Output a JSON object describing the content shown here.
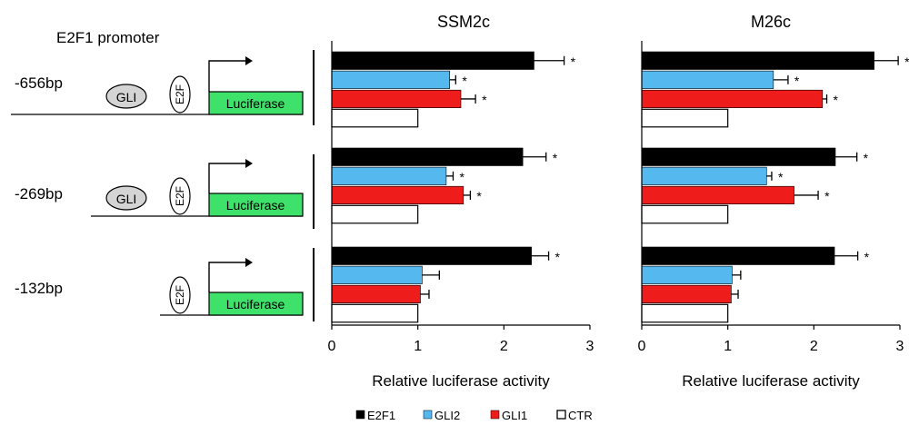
{
  "header": {
    "promoter_title": "E2F1 promoter"
  },
  "constructs": [
    {
      "label": "-656bp",
      "has_gli": true,
      "gli_text": "GLI",
      "e2f_text": "E2F",
      "reporter_text": "Luciferase"
    },
    {
      "label": "-269bp",
      "has_gli": true,
      "gli_text": "GLI",
      "e2f_text": "E2F",
      "reporter_text": "Luciferase"
    },
    {
      "label": "-132bp",
      "has_gli": false,
      "gli_text": "",
      "e2f_text": "E2F",
      "reporter_text": "Luciferase"
    }
  ],
  "colors": {
    "E2F1": "#000000",
    "GLI2": "#55b8ef",
    "GLI1": "#ef1c1c",
    "CTR": "#ffffff",
    "gli_oval": "#d4d4d4",
    "luciferase": "#3ee26a"
  },
  "chart_data": [
    {
      "type": "bar",
      "orientation": "horizontal",
      "title": "SSM2c",
      "xlabel": "Relative luciferase activity",
      "xlim": [
        0,
        3
      ],
      "xticks": [
        "0",
        "1",
        "2",
        "3"
      ],
      "categories": [
        "-656bp",
        "-269bp",
        "-132bp"
      ],
      "series": [
        {
          "name": "E2F1",
          "values": [
            2.35,
            2.22,
            2.32
          ],
          "errors": [
            0.35,
            0.27,
            0.2
          ],
          "significant": [
            true,
            true,
            true
          ]
        },
        {
          "name": "GLI2",
          "values": [
            1.37,
            1.33,
            1.05
          ],
          "errors": [
            0.07,
            0.08,
            0.2
          ],
          "significant": [
            true,
            true,
            false
          ]
        },
        {
          "name": "GLI1",
          "values": [
            1.5,
            1.53,
            1.03
          ],
          "errors": [
            0.17,
            0.08,
            0.1
          ],
          "significant": [
            true,
            true,
            false
          ]
        },
        {
          "name": "CTR",
          "values": [
            1.0,
            1.0,
            1.0
          ],
          "errors": [
            0,
            0,
            0
          ],
          "significant": [
            false,
            false,
            false
          ]
        }
      ],
      "annotation_text": "*"
    },
    {
      "type": "bar",
      "orientation": "horizontal",
      "title": "M26c",
      "xlabel": "Relative luciferase activity",
      "xlim": [
        0,
        3
      ],
      "xticks": [
        "0",
        "1",
        "2",
        "3"
      ],
      "categories": [
        "-656bp",
        "-269bp",
        "-132bp"
      ],
      "series": [
        {
          "name": "E2F1",
          "values": [
            2.7,
            2.25,
            2.24
          ],
          "errors": [
            0.28,
            0.25,
            0.27
          ],
          "significant": [
            true,
            true,
            true
          ]
        },
        {
          "name": "GLI2",
          "values": [
            1.53,
            1.45,
            1.05
          ],
          "errors": [
            0.17,
            0.06,
            0.1
          ],
          "significant": [
            true,
            true,
            false
          ]
        },
        {
          "name": "GLI1",
          "values": [
            2.1,
            1.77,
            1.04
          ],
          "errors": [
            0.05,
            0.28,
            0.08
          ],
          "significant": [
            true,
            true,
            false
          ]
        },
        {
          "name": "CTR",
          "values": [
            1.0,
            1.0,
            1.0
          ],
          "errors": [
            0,
            0,
            0
          ],
          "significant": [
            false,
            false,
            false
          ]
        }
      ],
      "annotation_text": "*"
    }
  ],
  "legend": {
    "placement": "bottom-center",
    "items": [
      {
        "name": "E2F1",
        "label": "E2F1"
      },
      {
        "name": "GLI2",
        "label": "GLI2"
      },
      {
        "name": "GLI1",
        "label": "GLI1"
      },
      {
        "name": "CTR",
        "label": "CTR"
      }
    ]
  }
}
